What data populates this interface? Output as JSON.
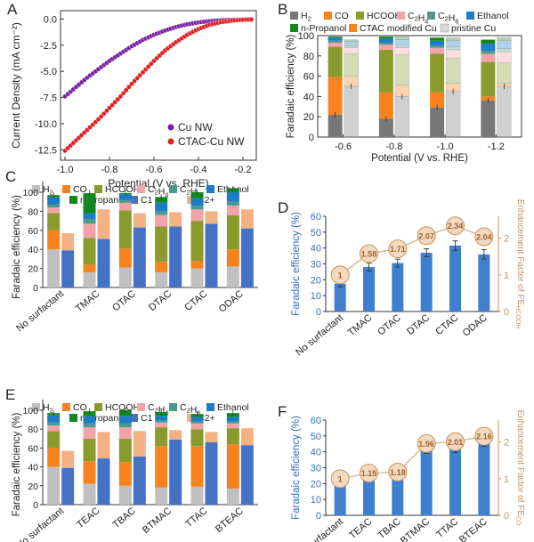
{
  "panel_letters": [
    "A",
    "B",
    "C",
    "D",
    "E",
    "F"
  ],
  "chart_data": [
    {
      "panel": "A",
      "type": "scatter",
      "xlabel": "Potential (V vs. RHE)",
      "ylabel": "Current Density (mA cm⁻²)",
      "xlim": [
        -1.02,
        -0.14
      ],
      "ylim": [
        -13.5,
        0.8
      ],
      "xticks": [
        -1.0,
        -0.8,
        -0.6,
        -0.4,
        -0.2
      ],
      "xtick_labels": [
        "-1.0",
        "-0.8",
        "-0.6",
        "-0.4",
        "-0.2"
      ],
      "yticks": [
        0.0,
        -2.5,
        -5.0,
        -7.5,
        -10.0,
        -12.5
      ],
      "ytick_labels": [
        "0.0",
        "-2.5",
        "-5.0",
        "-7.5",
        "-10.0",
        "-12.5"
      ],
      "legend_position": "bottom-right",
      "series": [
        {
          "name": "Cu NW",
          "color": "#7a1fa2",
          "x": [
            -1.0,
            -0.95,
            -0.9,
            -0.85,
            -0.8,
            -0.75,
            -0.7,
            -0.65,
            -0.6,
            -0.55,
            -0.5,
            -0.45,
            -0.4,
            -0.35,
            -0.3,
            -0.25,
            -0.2,
            -0.15
          ],
          "y": [
            -7.4,
            -6.5,
            -5.6,
            -4.8,
            -4.0,
            -3.3,
            -2.6,
            -2.0,
            -1.5,
            -1.1,
            -0.75,
            -0.5,
            -0.32,
            -0.2,
            -0.12,
            -0.07,
            -0.04,
            -0.02
          ]
        },
        {
          "name": "CTAC-Cu NW",
          "color": "#e02020",
          "x": [
            -1.0,
            -0.95,
            -0.9,
            -0.85,
            -0.8,
            -0.75,
            -0.7,
            -0.65,
            -0.6,
            -0.55,
            -0.5,
            -0.45,
            -0.4,
            -0.35,
            -0.3,
            -0.25,
            -0.2,
            -0.15
          ],
          "y": [
            -12.6,
            -11.6,
            -10.6,
            -9.6,
            -8.5,
            -7.4,
            -6.2,
            -5.1,
            -4.0,
            -3.0,
            -2.2,
            -1.5,
            -0.95,
            -0.55,
            -0.3,
            -0.15,
            -0.07,
            -0.03
          ]
        }
      ]
    },
    {
      "panel": "B",
      "type": "bar",
      "xlabel": "Potential (V vs. RHE)",
      "ylabel": "Faradaic efficiency (%)",
      "ylim": [
        0,
        100
      ],
      "yticks": [
        0,
        20,
        40,
        60,
        80,
        100
      ],
      "categories": [
        "-0.6",
        "-0.8",
        "-1.0",
        "-1.2"
      ],
      "legend": [
        {
          "name": "H₂",
          "color": "#777777"
        },
        {
          "name": "CO",
          "color": "#f7821e"
        },
        {
          "name": "HCOOH",
          "color": "#8a9a2c"
        },
        {
          "name": "C₂H₄",
          "color": "#f2a2a8"
        },
        {
          "name": "C₂H₆",
          "color": "#4a9a8e"
        },
        {
          "name": "Ethanol",
          "color": "#1c7cc6"
        },
        {
          "name": "n-Propanol",
          "color": "#12871f"
        },
        {
          "name": "CTAC modified Cu",
          "color": "#f7821e"
        },
        {
          "name": "pristine Cu",
          "color": "#bbbbbb"
        }
      ],
      "series_order": [
        "H2",
        "CO",
        "HCOOH",
        "C2H4",
        "C2H6",
        "Ethanol",
        "n-Propanol"
      ],
      "groups": [
        {
          "label": "CTAC modified Cu",
          "stacks": [
            [
              22,
              37,
              30,
              4,
              2,
              3,
              1
            ],
            [
              18,
              26,
              42,
              5,
              2,
              4,
              2
            ],
            [
              29,
              15,
              38,
              6,
              2,
              5,
              3
            ],
            [
              36,
              4,
              34,
              8,
              3,
              7,
              4
            ]
          ]
        },
        {
          "label": "pristine Cu",
          "stacks": [
            [
              50,
              10,
              22,
              6,
              2,
              4,
              2
            ],
            [
              40,
              11,
              30,
              7,
              3,
              5,
              3
            ],
            [
              45,
              8,
              25,
              8,
              3,
              6,
              3
            ],
            [
              50,
              3,
              20,
              11,
              3,
              8,
              3
            ]
          ]
        }
      ]
    },
    {
      "panel": "C",
      "type": "bar",
      "ylabel": "Faradaic efficiency (%)",
      "ylim": [
        0,
        100
      ],
      "yticks": [
        0,
        20,
        40,
        60,
        80,
        100
      ],
      "categories": [
        "No surfactant",
        "TMAC",
        "OTAC",
        "DTAC",
        "CTAC",
        "ODAC"
      ],
      "legend": [
        {
          "name": "H₂",
          "color": "#c0c0c0"
        },
        {
          "name": "CO",
          "color": "#f7821e"
        },
        {
          "name": "HCOOH",
          "color": "#8a9a2c"
        },
        {
          "name": "C₂H₄",
          "color": "#f2a2a8"
        },
        {
          "name": "C₂H₆",
          "color": "#4a9a8e"
        },
        {
          "name": "Ethanol",
          "color": "#1c7cc6"
        },
        {
          "name": "n-Propanol",
          "color": "#12871f"
        },
        {
          "name": "C1",
          "color": "#4472c4"
        },
        {
          "name": "C2+",
          "color": "#f4b183"
        }
      ],
      "series_order": [
        "H2",
        "CO",
        "HCOOH",
        "C2H4",
        "C2H6",
        "Ethanol",
        "n-Propanol"
      ],
      "stacks": [
        [
          40,
          20,
          18,
          6,
          3,
          8,
          2
        ],
        [
          16,
          8,
          28,
          15,
          5,
          6,
          21
        ],
        [
          21,
          20,
          40,
          8,
          3,
          6,
          1
        ],
        [
          16,
          11,
          37,
          12,
          4,
          9,
          6
        ],
        [
          20,
          8,
          42,
          12,
          4,
          8,
          6
        ],
        [
          22,
          18,
          36,
          10,
          4,
          10,
          4
        ]
      ],
      "c1": [
        39,
        51,
        63,
        64,
        67,
        62
      ],
      "c2plus": [
        57,
        82,
        78,
        79,
        80,
        82
      ]
    },
    {
      "panel": "D",
      "type": "bar",
      "ylabel": "Faradaic efficiency (%)",
      "y2label": "Enhancement Factor of FE",
      "y2label_sub": "HCOOH",
      "ylim": [
        0,
        60
      ],
      "yticks": [
        0,
        10,
        20,
        30,
        40,
        50,
        60
      ],
      "y2ticks": [
        0,
        1,
        2
      ],
      "categories": [
        "No surfactant",
        "TMAC",
        "OTAC",
        "DTAC",
        "CTAC",
        "ODAC"
      ],
      "values": [
        17.5,
        28,
        30.5,
        37,
        41.5,
        36
      ],
      "errors": [
        2,
        2.5,
        2.5,
        2.5,
        3,
        3
      ],
      "enhancement_labels": [
        "1",
        "1.58",
        "1.71",
        "2.07",
        "2.34",
        "2.04"
      ],
      "enhancement_values": [
        1,
        1.58,
        1.71,
        2.07,
        2.34,
        2.04
      ]
    },
    {
      "panel": "E",
      "type": "bar",
      "ylabel": "Faradaic efficiency (%)",
      "ylim": [
        0,
        100
      ],
      "yticks": [
        0,
        20,
        40,
        60,
        80,
        100
      ],
      "categories": [
        "No surfactant",
        "TEAC",
        "TBAC",
        "BTMAC",
        "TTAC",
        "BTEAC"
      ],
      "legend": [
        {
          "name": "H₂",
          "color": "#c0c0c0"
        },
        {
          "name": "CO",
          "color": "#f7821e"
        },
        {
          "name": "HCOOH",
          "color": "#8a9a2c"
        },
        {
          "name": "C₂H₄",
          "color": "#f2a2a8"
        },
        {
          "name": "C₂H₆",
          "color": "#4a9a8e"
        },
        {
          "name": "Ethanol",
          "color": "#1c7cc6"
        },
        {
          "name": "n-Propanol",
          "color": "#12871f"
        },
        {
          "name": "C1",
          "color": "#4472c4"
        },
        {
          "name": "C2+",
          "color": "#f4b183"
        }
      ],
      "series_order": [
        "H2",
        "CO",
        "HCOOH",
        "C2H4",
        "C2H6",
        "Ethanol",
        "n-Propanol"
      ],
      "stacks": [
        [
          40,
          20,
          18,
          6,
          3,
          8,
          2
        ],
        [
          22,
          24,
          24,
          12,
          4,
          8,
          5
        ],
        [
          20,
          25,
          25,
          12,
          4,
          8,
          6
        ],
        [
          18,
          44,
          20,
          5,
          2,
          5,
          4
        ],
        [
          19,
          43,
          18,
          6,
          2,
          5,
          3
        ],
        [
          17,
          47,
          17,
          5,
          2,
          5,
          4
        ]
      ],
      "c1": [
        39,
        49,
        51,
        69,
        66,
        63
      ],
      "c2plus": [
        57,
        77,
        78,
        79,
        77,
        81
      ]
    },
    {
      "panel": "F",
      "type": "bar",
      "ylabel": "Faradaic efficiency (%)",
      "y2label": "Enhancement Factor of FE",
      "y2label_sub": "CO",
      "ylim": [
        0,
        60
      ],
      "yticks": [
        0,
        10,
        20,
        30,
        40,
        50,
        60
      ],
      "y2ticks": [
        0,
        1,
        2
      ],
      "categories": [
        "No Surfactant",
        "TEAC",
        "TBAC",
        "BTMAC",
        "TTAC",
        "BTEAC"
      ],
      "values": [
        21,
        24,
        25,
        41.5,
        42.5,
        45.5
      ],
      "errors": [
        1.5,
        2,
        2,
        2.5,
        3,
        2
      ],
      "enhancement_labels": [
        "1",
        "1.15",
        "1.18",
        "1.96",
        "2.01",
        "2.16"
      ],
      "enhancement_values": [
        1,
        1.15,
        1.18,
        1.96,
        2.01,
        2.16
      ]
    }
  ]
}
